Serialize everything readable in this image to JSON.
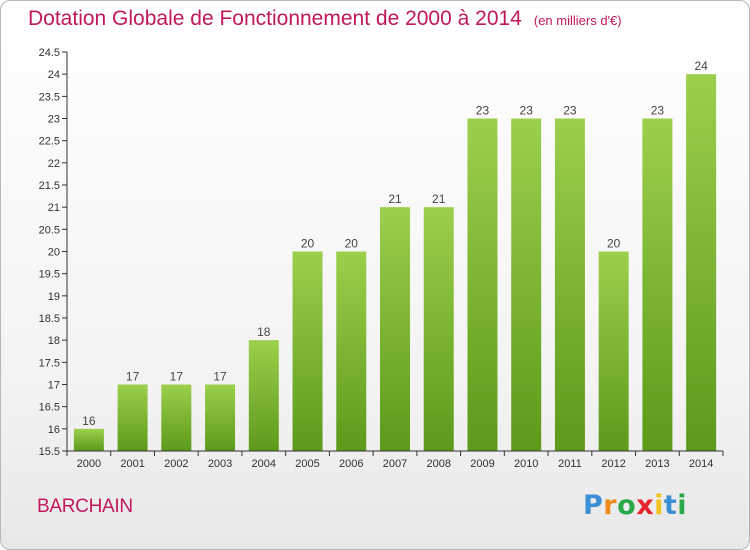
{
  "chart_data": {
    "type": "bar",
    "title": "Dotation Globale de Fonctionnement de 2000 à 2014",
    "unit_label": "(en milliers d'€)",
    "categories": [
      "2000",
      "2001",
      "2002",
      "2003",
      "2004",
      "2005",
      "2006",
      "2007",
      "2008",
      "2009",
      "2010",
      "2011",
      "2012",
      "2013",
      "2014"
    ],
    "values": [
      16,
      17,
      17,
      17,
      18,
      20,
      20,
      21,
      21,
      23,
      23,
      23,
      20,
      23,
      24
    ],
    "value_labels": [
      "16",
      "17",
      "17",
      "17",
      "18",
      "20",
      "20",
      "21",
      "21",
      "23",
      "23",
      "23",
      "20",
      "23",
      "24"
    ],
    "y_ticks": [
      "15.5",
      "16",
      "16.5",
      "17",
      "17.5",
      "18",
      "18.5",
      "19",
      "19.5",
      "20",
      "20.5",
      "21",
      "21.5",
      "22",
      "22.5",
      "23",
      "23.5",
      "24",
      "24.5"
    ],
    "ylim": [
      15.5,
      24.5
    ],
    "xlabel": "",
    "ylabel": "",
    "grid": false,
    "bar_color_top": "#9ccf4c",
    "bar_color_bottom": "#5d9a1a"
  },
  "commune": "BARCHAIN",
  "logo": {
    "letters": [
      "P",
      "r",
      "o",
      "x",
      "i",
      "t",
      "i"
    ]
  }
}
